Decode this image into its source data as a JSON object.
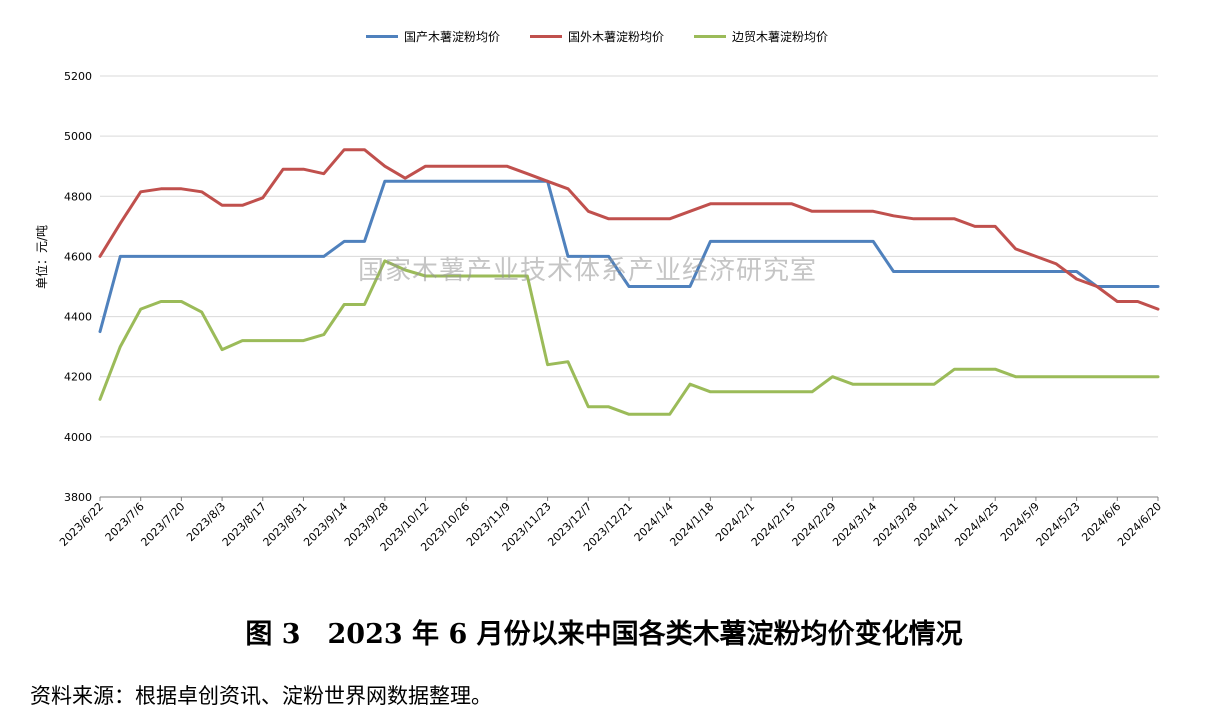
{
  "chart_data": {
    "type": "line",
    "ylabel": "单位：元/吨",
    "ylim": [
      3800,
      5200
    ],
    "yticks": [
      3800,
      4000,
      4200,
      4400,
      4600,
      4800,
      5000,
      5200
    ],
    "grid": true,
    "legend_position": "top-center",
    "x": [
      "2023/6/22",
      "2023/6/29",
      "2023/7/6",
      "2023/7/13",
      "2023/7/20",
      "2023/7/27",
      "2023/8/3",
      "2023/8/10",
      "2023/8/17",
      "2023/8/24",
      "2023/8/31",
      "2023/9/7",
      "2023/9/14",
      "2023/9/21",
      "2023/9/28",
      "2023/10/5",
      "2023/10/12",
      "2023/10/19",
      "2023/10/26",
      "2023/11/2",
      "2023/11/9",
      "2023/11/16",
      "2023/11/23",
      "2023/11/30",
      "2023/12/7",
      "2023/12/14",
      "2023/12/21",
      "2023/12/28",
      "2024/1/4",
      "2024/1/11",
      "2024/1/18",
      "2024/1/25",
      "2024/2/1",
      "2024/2/8",
      "2024/2/15",
      "2024/2/22",
      "2024/2/29",
      "2024/3/7",
      "2024/3/14",
      "2024/3/21",
      "2024/3/28",
      "2024/4/4",
      "2024/4/11",
      "2024/4/18",
      "2024/4/25",
      "2024/5/2",
      "2024/5/9",
      "2024/5/16",
      "2024/5/23",
      "2024/5/30",
      "2024/6/6",
      "2024/6/13",
      "2024/6/20"
    ],
    "xtick_labels": [
      "2023/6/22",
      "2023/7/6",
      "2023/7/20",
      "2023/8/3",
      "2023/8/17",
      "2023/8/31",
      "2023/9/14",
      "2023/9/28",
      "2023/10/12",
      "2023/10/26",
      "2023/11/9",
      "2023/11/23",
      "2023/12/7",
      "2023/12/21",
      "2024/1/4",
      "2024/1/18",
      "2024/2/1",
      "2024/2/15",
      "2024/2/29",
      "2024/3/14",
      "2024/3/28",
      "2024/4/11",
      "2024/4/25",
      "2024/5/9",
      "2024/5/23",
      "2024/6/6",
      "2024/6/20"
    ],
    "series": [
      {
        "name": "国产木薯淀粉均价",
        "color": "#4f81bd",
        "values": [
          4350,
          4600,
          4600,
          4600,
          4600,
          4600,
          4600,
          4600,
          4600,
          4600,
          4600,
          4600,
          4650,
          4650,
          4850,
          4850,
          4850,
          4850,
          4850,
          4850,
          4850,
          4850,
          4850,
          4600,
          4600,
          4600,
          4500,
          4500,
          4500,
          4500,
          4650,
          4650,
          4650,
          4650,
          4650,
          4650,
          4650,
          4650,
          4650,
          4550,
          4550,
          4550,
          4550,
          4550,
          4550,
          4550,
          4550,
          4550,
          4550,
          4500,
          4500,
          4500,
          4500
        ]
      },
      {
        "name": "国外木薯淀粉均价",
        "color": "#c0504d",
        "values": [
          4600,
          4710,
          4815,
          4825,
          4825,
          4815,
          4770,
          4770,
          4795,
          4890,
          4890,
          4875,
          4955,
          4955,
          4900,
          4860,
          4900,
          4900,
          4900,
          4900,
          4900,
          4875,
          4850,
          4825,
          4750,
          4725,
          4725,
          4725,
          4725,
          4750,
          4775,
          4775,
          4775,
          4775,
          4775,
          4750,
          4750,
          4750,
          4750,
          4735,
          4725,
          4725,
          4725,
          4700,
          4700,
          4625,
          4600,
          4575,
          4525,
          4500,
          4450,
          4450,
          4425
        ]
      },
      {
        "name": "边贸木薯淀粉均价",
        "color": "#9bbb59",
        "values": [
          4125,
          4300,
          4425,
          4450,
          4450,
          4415,
          4290,
          4320,
          4320,
          4320,
          4320,
          4340,
          4440,
          4440,
          4585,
          4555,
          4535,
          4535,
          4535,
          4535,
          4535,
          4535,
          4240,
          4250,
          4100,
          4100,
          4075,
          4075,
          4075,
          4175,
          4150,
          4150,
          4150,
          4150,
          4150,
          4150,
          4200,
          4175,
          4175,
          4175,
          4175,
          4175,
          4225,
          4225,
          4225,
          4200,
          4200,
          4200,
          4200,
          4200,
          4200,
          4200,
          4200
        ]
      }
    ]
  },
  "watermark": "国家木薯产业技术体系产业经济研究室",
  "caption": "图 3　2023 年 6 月份以来中国各类木薯淀粉均价变化情况",
  "source": "资料来源：根据卓创资讯、淀粉世界网数据整理。"
}
